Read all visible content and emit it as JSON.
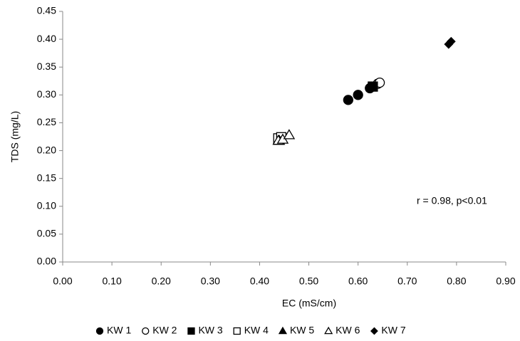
{
  "chart_data": {
    "type": "scatter",
    "xlabel": "EC (mS/cm)",
    "ylabel": "TDS (mg/L)",
    "annotation": "r = 0.98, p<0.01",
    "xlim": [
      0,
      0.9
    ],
    "xticks": [
      {
        "value": 0,
        "label": "0.00"
      },
      {
        "value": 0.1,
        "label": "0.10"
      },
      {
        "value": 0.2,
        "label": "0.20"
      },
      {
        "value": 0.3,
        "label": "0.30"
      },
      {
        "value": 0.4,
        "label": "0.40"
      },
      {
        "value": 0.5,
        "label": "0.50"
      },
      {
        "value": 0.6,
        "label": "0.60"
      },
      {
        "value": 0.7,
        "label": "0.70"
      },
      {
        "value": 0.8,
        "label": "0.80"
      },
      {
        "value": 0.9,
        "label": "0.90"
      }
    ],
    "ylim": [
      0,
      0.45
    ],
    "yticks": [
      {
        "value": 0,
        "label": "0.00"
      },
      {
        "value": 0.05,
        "label": "0.05"
      },
      {
        "value": 0.1,
        "label": "0.10"
      },
      {
        "value": 0.15,
        "label": "0.15"
      },
      {
        "value": 0.2,
        "label": "0.20"
      },
      {
        "value": 0.25,
        "label": "0.25"
      },
      {
        "value": 0.3,
        "label": "0.30"
      },
      {
        "value": 0.35,
        "label": "0.35"
      },
      {
        "value": 0.4,
        "label": "0.40"
      },
      {
        "value": 0.45,
        "label": "0.45"
      }
    ],
    "legend": "bottom",
    "series": [
      {
        "name": "KW 1",
        "color": "#000000",
        "marker": "circle",
        "filled": true,
        "x": [
          0.58,
          0.6,
          0.624
        ],
        "values": [
          0.291,
          0.3,
          0.312
        ]
      },
      {
        "name": "KW 2",
        "color": "#000000",
        "marker": "circle",
        "filled": false,
        "x": [
          0.64,
          0.644
        ],
        "values": [
          0.32,
          0.322
        ]
      },
      {
        "name": "KW 3",
        "color": "#000000",
        "marker": "square",
        "filled": true,
        "x": [
          0.63
        ],
        "values": [
          0.315
        ]
      },
      {
        "name": "KW 4",
        "color": "#000000",
        "marker": "square",
        "filled": false,
        "x": [
          0.438,
          0.444
        ],
        "values": [
          0.222,
          0.224
        ]
      },
      {
        "name": "KW 5",
        "color": "#000000",
        "marker": "triangle",
        "filled": true,
        "x": [
          0.44
        ],
        "values": [
          0.218
        ]
      },
      {
        "name": "KW 6",
        "color": "#000000",
        "marker": "triangle",
        "filled": false,
        "x": [
          0.438,
          0.447,
          0.46
        ],
        "values": [
          0.218,
          0.22,
          0.228
        ]
      },
      {
        "name": "KW 7",
        "color": "#000000",
        "marker": "diamond",
        "filled": true,
        "x": [
          0.784,
          0.789
        ],
        "values": [
          0.391,
          0.396
        ]
      }
    ]
  }
}
